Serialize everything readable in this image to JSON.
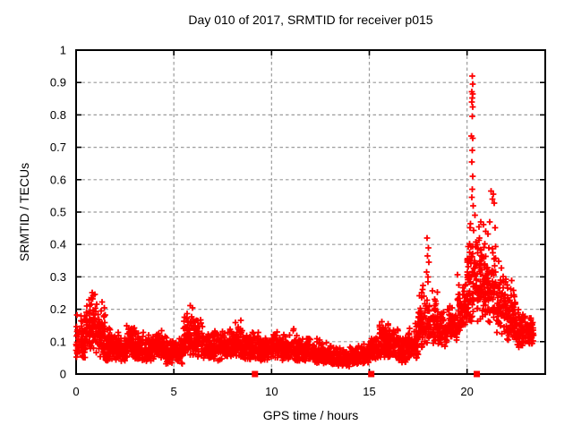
{
  "figure": {
    "title": "Day 010 of 2017, SRMTID for receiver p015",
    "xlabel": "GPS time / hours",
    "ylabel": "SRMTID / TECUs"
  },
  "chart_data": {
    "type": "scatter",
    "title": "Day 010 of 2017, SRMTID for receiver p015",
    "xlabel": "GPS time / hours",
    "ylabel": "SRMTID / TECUs",
    "xlim": [
      0,
      24
    ],
    "ylim": [
      0,
      1
    ],
    "xticks": {
      "values": [
        0,
        5,
        10,
        15,
        20
      ],
      "labels": [
        "0",
        "5",
        "10",
        "15",
        "20"
      ]
    },
    "yticks": {
      "values": [
        0,
        0.1,
        0.2,
        0.3,
        0.4,
        0.5,
        0.6,
        0.7,
        0.8,
        0.9,
        1.0
      ],
      "labels": [
        "0",
        "0.1",
        "0.2",
        "0.3",
        "0.4",
        "0.5",
        "0.6",
        "0.7",
        "0.8",
        "0.9",
        "1"
      ]
    },
    "grid": true,
    "legend": "none",
    "colors": {
      "series": "#ff0000",
      "grid": "#9c9c9c",
      "frame": "#000000",
      "text": "#000000",
      "background": "#ffffff"
    },
    "seed": 20170110,
    "series": [
      {
        "name": "srmtid-plus-markers",
        "marker": "plus",
        "band_bins": [
          [
            0.0,
            0.5,
            0.05,
            0.19,
            70
          ],
          [
            0.5,
            1.0,
            0.06,
            0.25,
            75
          ],
          [
            1.0,
            1.5,
            0.05,
            0.22,
            75
          ],
          [
            1.5,
            2.0,
            0.04,
            0.16,
            70
          ],
          [
            2.0,
            2.5,
            0.04,
            0.13,
            65
          ],
          [
            2.5,
            3.0,
            0.05,
            0.15,
            70
          ],
          [
            3.0,
            3.5,
            0.04,
            0.14,
            70
          ],
          [
            3.5,
            4.0,
            0.04,
            0.13,
            65
          ],
          [
            4.0,
            4.5,
            0.05,
            0.15,
            70
          ],
          [
            4.5,
            5.0,
            0.03,
            0.12,
            65
          ],
          [
            5.0,
            5.5,
            0.03,
            0.13,
            65
          ],
          [
            5.5,
            6.0,
            0.05,
            0.21,
            75
          ],
          [
            6.0,
            6.5,
            0.05,
            0.18,
            70
          ],
          [
            6.5,
            7.0,
            0.04,
            0.14,
            65
          ],
          [
            7.0,
            7.5,
            0.04,
            0.15,
            70
          ],
          [
            7.5,
            8.0,
            0.05,
            0.14,
            65
          ],
          [
            8.0,
            8.5,
            0.05,
            0.17,
            70
          ],
          [
            8.5,
            9.0,
            0.04,
            0.13,
            65
          ],
          [
            9.0,
            9.5,
            0.04,
            0.14,
            65
          ],
          [
            9.5,
            10.0,
            0.04,
            0.12,
            65
          ],
          [
            10.0,
            10.5,
            0.05,
            0.14,
            70
          ],
          [
            10.5,
            11.0,
            0.04,
            0.13,
            65
          ],
          [
            11.0,
            11.5,
            0.04,
            0.15,
            70
          ],
          [
            11.5,
            12.0,
            0.04,
            0.12,
            65
          ],
          [
            12.0,
            12.5,
            0.03,
            0.11,
            65
          ],
          [
            12.5,
            13.0,
            0.03,
            0.1,
            60
          ],
          [
            13.0,
            13.5,
            0.02,
            0.09,
            60
          ],
          [
            13.5,
            14.0,
            0.02,
            0.08,
            60
          ],
          [
            14.0,
            14.5,
            0.03,
            0.09,
            60
          ],
          [
            14.5,
            15.0,
            0.03,
            0.1,
            60
          ],
          [
            15.0,
            15.5,
            0.04,
            0.12,
            65
          ],
          [
            15.5,
            16.0,
            0.05,
            0.17,
            70
          ],
          [
            16.0,
            16.5,
            0.05,
            0.15,
            70
          ],
          [
            16.5,
            17.0,
            0.03,
            0.12,
            65
          ],
          [
            17.0,
            17.5,
            0.05,
            0.16,
            70
          ],
          [
            17.5,
            18.0,
            0.08,
            0.28,
            70
          ],
          [
            18.0,
            18.5,
            0.09,
            0.26,
            70
          ],
          [
            18.5,
            19.0,
            0.08,
            0.21,
            65
          ],
          [
            19.0,
            19.5,
            0.1,
            0.23,
            70
          ],
          [
            19.5,
            20.0,
            0.12,
            0.32,
            75
          ],
          [
            20.0,
            20.5,
            0.15,
            0.5,
            85
          ],
          [
            20.5,
            21.0,
            0.15,
            0.45,
            75
          ],
          [
            21.0,
            21.5,
            0.16,
            0.43,
            75
          ],
          [
            21.5,
            22.0,
            0.12,
            0.35,
            70
          ],
          [
            22.0,
            22.5,
            0.1,
            0.3,
            70
          ],
          [
            22.5,
            23.0,
            0.08,
            0.22,
            65
          ],
          [
            23.0,
            23.4,
            0.08,
            0.2,
            55
          ]
        ],
        "outlier_points": [
          [
            20.26,
            0.92
          ],
          [
            20.28,
            0.895
          ],
          [
            20.25,
            0.872
          ],
          [
            20.29,
            0.865
          ],
          [
            20.27,
            0.852
          ],
          [
            20.24,
            0.84
          ],
          [
            20.28,
            0.825
          ],
          [
            20.26,
            0.795
          ],
          [
            20.23,
            0.735
          ],
          [
            20.3,
            0.728
          ],
          [
            20.27,
            0.69
          ],
          [
            20.25,
            0.655
          ],
          [
            20.28,
            0.61
          ],
          [
            20.26,
            0.57
          ],
          [
            20.24,
            0.545
          ],
          [
            20.31,
            0.52
          ],
          [
            20.41,
            0.49
          ],
          [
            17.95,
            0.42
          ],
          [
            18.02,
            0.39
          ],
          [
            17.97,
            0.365
          ],
          [
            18.04,
            0.345
          ],
          [
            17.92,
            0.315
          ],
          [
            18.0,
            0.3
          ],
          [
            17.99,
            0.285
          ],
          [
            21.22,
            0.565
          ],
          [
            21.35,
            0.555
          ],
          [
            21.3,
            0.54
          ],
          [
            21.39,
            0.528
          ],
          [
            21.15,
            0.47
          ],
          [
            21.43,
            0.452
          ],
          [
            20.85,
            0.462
          ],
          [
            20.96,
            0.44
          ],
          [
            21.06,
            0.432
          ],
          [
            20.7,
            0.47
          ],
          [
            20.62,
            0.455
          ],
          [
            0.82,
            0.252
          ],
          [
            0.88,
            0.243
          ],
          [
            1.32,
            0.222
          ],
          [
            5.85,
            0.212
          ],
          [
            5.95,
            0.205
          ]
        ]
      },
      {
        "name": "axis-flag-squares",
        "marker": "filled-square",
        "points": [
          [
            9.15,
            0
          ],
          [
            15.1,
            0
          ],
          [
            20.5,
            0
          ]
        ]
      }
    ]
  }
}
